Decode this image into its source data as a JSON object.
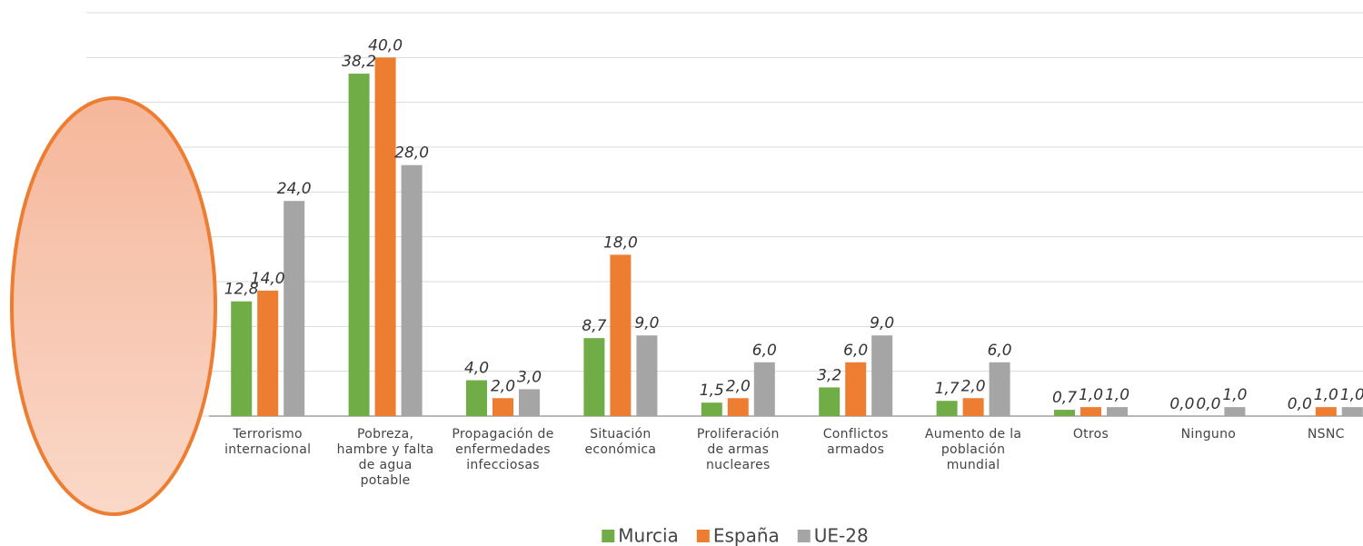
{
  "chart_data": {
    "type": "bar",
    "categories": [
      "Terrorismo\ninternacional",
      "Pobreza,\nhambre y falta\nde agua\npotable",
      "Propagación de\nenfermedades\ninfecciosas",
      "Situación\neconómica",
      "Proliferación\nde armas\nnucleares",
      "Conflictos\narmados",
      "Aumento de la\npoblación\nmundial",
      "Otros",
      "Ninguno",
      "NSNC"
    ],
    "series": [
      {
        "name": "Murcia",
        "color": "#70ad47",
        "values": [
          12.8,
          38.2,
          4.0,
          8.7,
          1.5,
          3.2,
          1.7,
          0.7,
          0.0,
          0.0
        ],
        "value_labels": [
          "12,8",
          "38,2",
          "4,0",
          "8,7",
          "1,5",
          "3,2",
          "1,7",
          "0,7",
          "0,0",
          "0,0"
        ]
      },
      {
        "name": "España",
        "color": "#ed7d31",
        "values": [
          14.0,
          40.0,
          2.0,
          18.0,
          2.0,
          6.0,
          2.0,
          1.0,
          0.0,
          1.0
        ],
        "value_labels": [
          "14,0",
          "40,0",
          "2,0",
          "18,0",
          "2,0",
          "6,0",
          "2,0",
          "1,0",
          "0,0",
          "1,0"
        ]
      },
      {
        "name": "UE-28",
        "color": "#a5a5a5",
        "values": [
          24.0,
          28.0,
          3.0,
          9.0,
          6.0,
          9.0,
          6.0,
          1.0,
          1.0,
          1.0
        ],
        "value_labels": [
          "24,0",
          "28,0",
          "3,0",
          "9,0",
          "6,0",
          "9,0",
          "6,0",
          "1,0",
          "1,0",
          "1,0"
        ]
      }
    ],
    "ylim": [
      0,
      45
    ],
    "yticks": [
      0,
      5,
      10,
      15,
      20,
      25,
      30,
      35,
      40,
      45
    ],
    "grid": true,
    "legend": "bottom"
  }
}
